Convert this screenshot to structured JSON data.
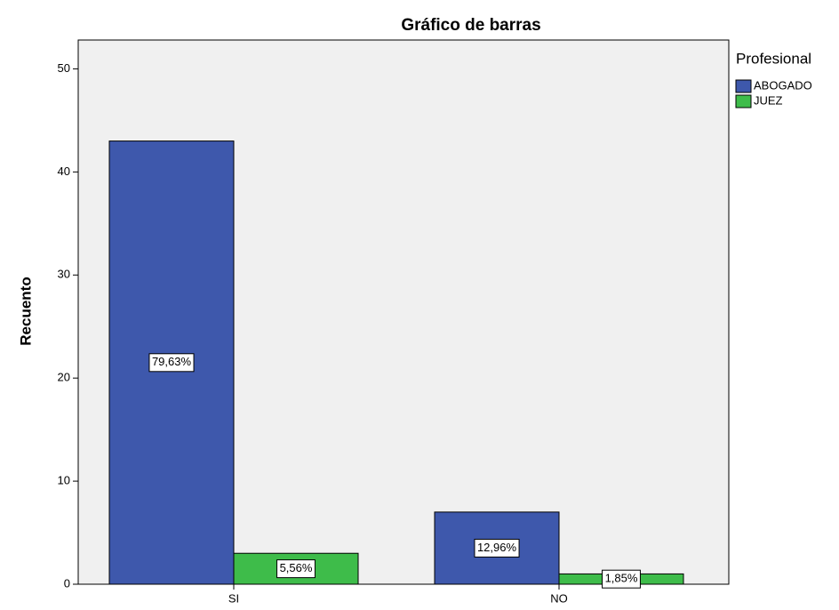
{
  "chart_data": {
    "type": "bar",
    "title": "Gráfico de barras",
    "y_label": "Recuento",
    "categories": [
      "SI",
      "NO"
    ],
    "legend_title": "Profesional",
    "series": [
      {
        "name": "ABOGADO",
        "color": "#3e58ac",
        "values": [
          43,
          7
        ],
        "labels": [
          "79,63%",
          "12,96%"
        ]
      },
      {
        "name": "JUEZ",
        "color": "#3ebc4a",
        "values": [
          3,
          1
        ],
        "labels": [
          "5,56%",
          "1,85%"
        ]
      }
    ],
    "ylim": [
      0,
      52.8
    ],
    "yticks": [
      0,
      10,
      20,
      30,
      40,
      50
    ],
    "legend": "right"
  }
}
